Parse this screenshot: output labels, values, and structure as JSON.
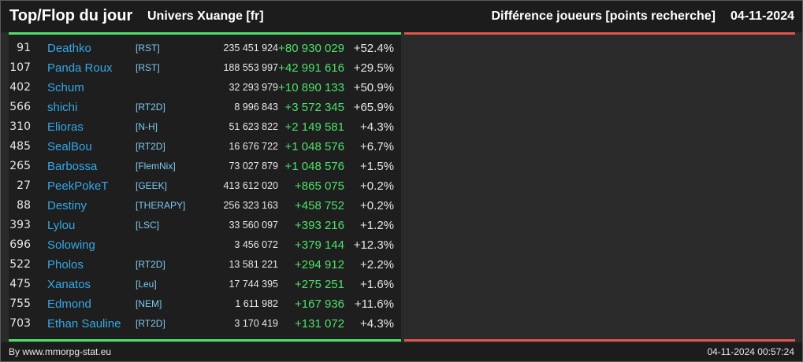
{
  "header": {
    "title": "Top/Flop du jour",
    "universe": "Univers Xuange [fr]",
    "subtitle": "Différence joueurs [points recherche]",
    "date": "04-11-2024"
  },
  "rows": [
    {
      "rank": "91",
      "name": "Deathko",
      "alliance": "[RST]",
      "points": "235 451 924",
      "diff": "+80 930 029",
      "pct": "+52.4%"
    },
    {
      "rank": "107",
      "name": "Panda Roux",
      "alliance": "[RST]",
      "points": "188 553 997",
      "diff": "+42 991 616",
      "pct": "+29.5%"
    },
    {
      "rank": "402",
      "name": "Schum",
      "alliance": "",
      "points": "32 293 979",
      "diff": "+10 890 133",
      "pct": "+50.9%"
    },
    {
      "rank": "566",
      "name": "shichi",
      "alliance": "[RT2D]",
      "points": "8 996 843",
      "diff": "+3 572 345",
      "pct": "+65.9%"
    },
    {
      "rank": "310",
      "name": "Elioras",
      "alliance": "[N-H]",
      "points": "51 623 822",
      "diff": "+2 149 581",
      "pct": "+4.3%"
    },
    {
      "rank": "485",
      "name": "SealBou",
      "alliance": "[RT2D]",
      "points": "16 676 722",
      "diff": "+1 048 576",
      "pct": "+6.7%"
    },
    {
      "rank": "265",
      "name": "Barbossa",
      "alliance": "[FlemNix]",
      "points": "73 027 879",
      "diff": "+1 048 576",
      "pct": "+1.5%"
    },
    {
      "rank": "27",
      "name": "PeekPokeT",
      "alliance": "[GEEK]",
      "points": "413 612 020",
      "diff": "+865 075",
      "pct": "+0.2%"
    },
    {
      "rank": "88",
      "name": "Destiny",
      "alliance": "[THERAPY]",
      "points": "256 323 163",
      "diff": "+458 752",
      "pct": "+0.2%"
    },
    {
      "rank": "393",
      "name": "Lylou",
      "alliance": "[LSC]",
      "points": "33 560 097",
      "diff": "+393 216",
      "pct": "+1.2%"
    },
    {
      "rank": "696",
      "name": "Solowing",
      "alliance": "",
      "points": "3 456 072",
      "diff": "+379 144",
      "pct": "+12.3%"
    },
    {
      "rank": "522",
      "name": "Pholos",
      "alliance": "[RT2D]",
      "points": "13 581 221",
      "diff": "+294 912",
      "pct": "+2.2%"
    },
    {
      "rank": "475",
      "name": "Xanatos",
      "alliance": "[Leu]",
      "points": "17 744 395",
      "diff": "+275 251",
      "pct": "+1.6%"
    },
    {
      "rank": "755",
      "name": "Edmond",
      "alliance": "[NEM]",
      "points": "1 611 982",
      "diff": "+167 936",
      "pct": "+11.6%"
    },
    {
      "rank": "703",
      "name": "Ethan Sauline",
      "alliance": "[RT2D]",
      "points": "3 170 419",
      "diff": "+131 072",
      "pct": "+4.3%"
    }
  ],
  "footer": {
    "credit": "By www.mmorpg-stat.eu",
    "timestamp": "04-11-2024 00:57:24"
  },
  "colors": {
    "top_accent": "#4ee06a",
    "flop_accent": "#e0554c",
    "player_link": "#35a8e6",
    "alliance_link": "#7ec8f0"
  }
}
